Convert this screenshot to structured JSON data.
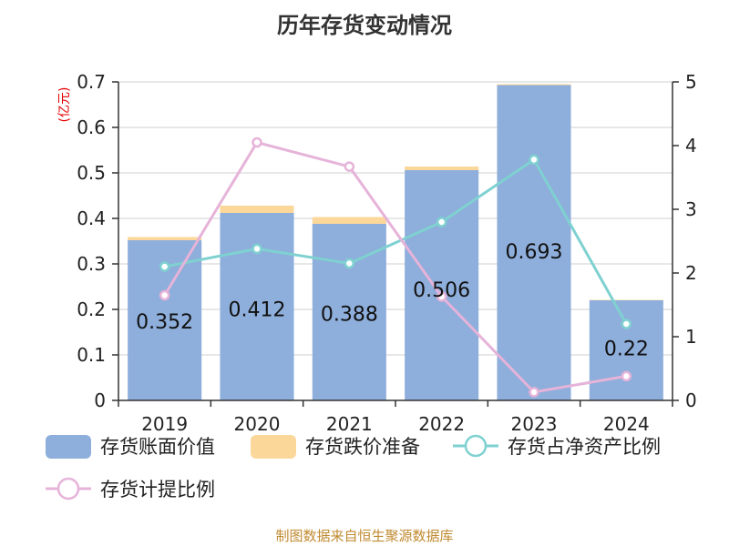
{
  "title": "历年存货变动情况",
  "source": "制图数据来自恒生聚源数据库",
  "colors": {
    "book_value": "#8eaedb",
    "impairment": "#fcd79a",
    "net_asset_ratio": "#7fd1d1",
    "provision_ratio": "#e6b3d9",
    "unit_label": "#e60000",
    "source_text": "#c08a30"
  },
  "chart_data": {
    "type": "bar",
    "title": "历年存货变动情况",
    "categories": [
      "2019",
      "2020",
      "2021",
      "2022",
      "2023",
      "2024"
    ],
    "y_left_unit": "(亿元)",
    "y_left_ticks": [
      "0",
      "0.1",
      "0.2",
      "0.3",
      "0.4",
      "0.5",
      "0.6",
      "0.7"
    ],
    "y_right_ticks": [
      "0",
      "1",
      "2",
      "3",
      "4",
      "5"
    ],
    "ylim_left": [
      0,
      0.7
    ],
    "ylim_right": [
      0,
      5
    ],
    "grid": true,
    "legend_position": "bottom",
    "bar_series": [
      {
        "name": "存货账面价值",
        "values": [
          0.352,
          0.412,
          0.388,
          0.506,
          0.693,
          0.22
        ],
        "labels": [
          "0.352",
          "0.412",
          "0.388",
          "0.506",
          "0.693",
          "0.22"
        ]
      },
      {
        "name": "存货跌价准备",
        "values": [
          0.007,
          0.016,
          0.015,
          0.008,
          0.002,
          0.001
        ]
      }
    ],
    "line_series": [
      {
        "name": "存货占净资产比例",
        "axis": "right",
        "values": [
          2.1,
          2.38,
          2.15,
          2.8,
          3.78,
          1.2
        ]
      },
      {
        "name": "存货计提比例",
        "axis": "right",
        "values": [
          1.65,
          4.05,
          3.67,
          1.63,
          0.13,
          0.38
        ]
      }
    ]
  }
}
